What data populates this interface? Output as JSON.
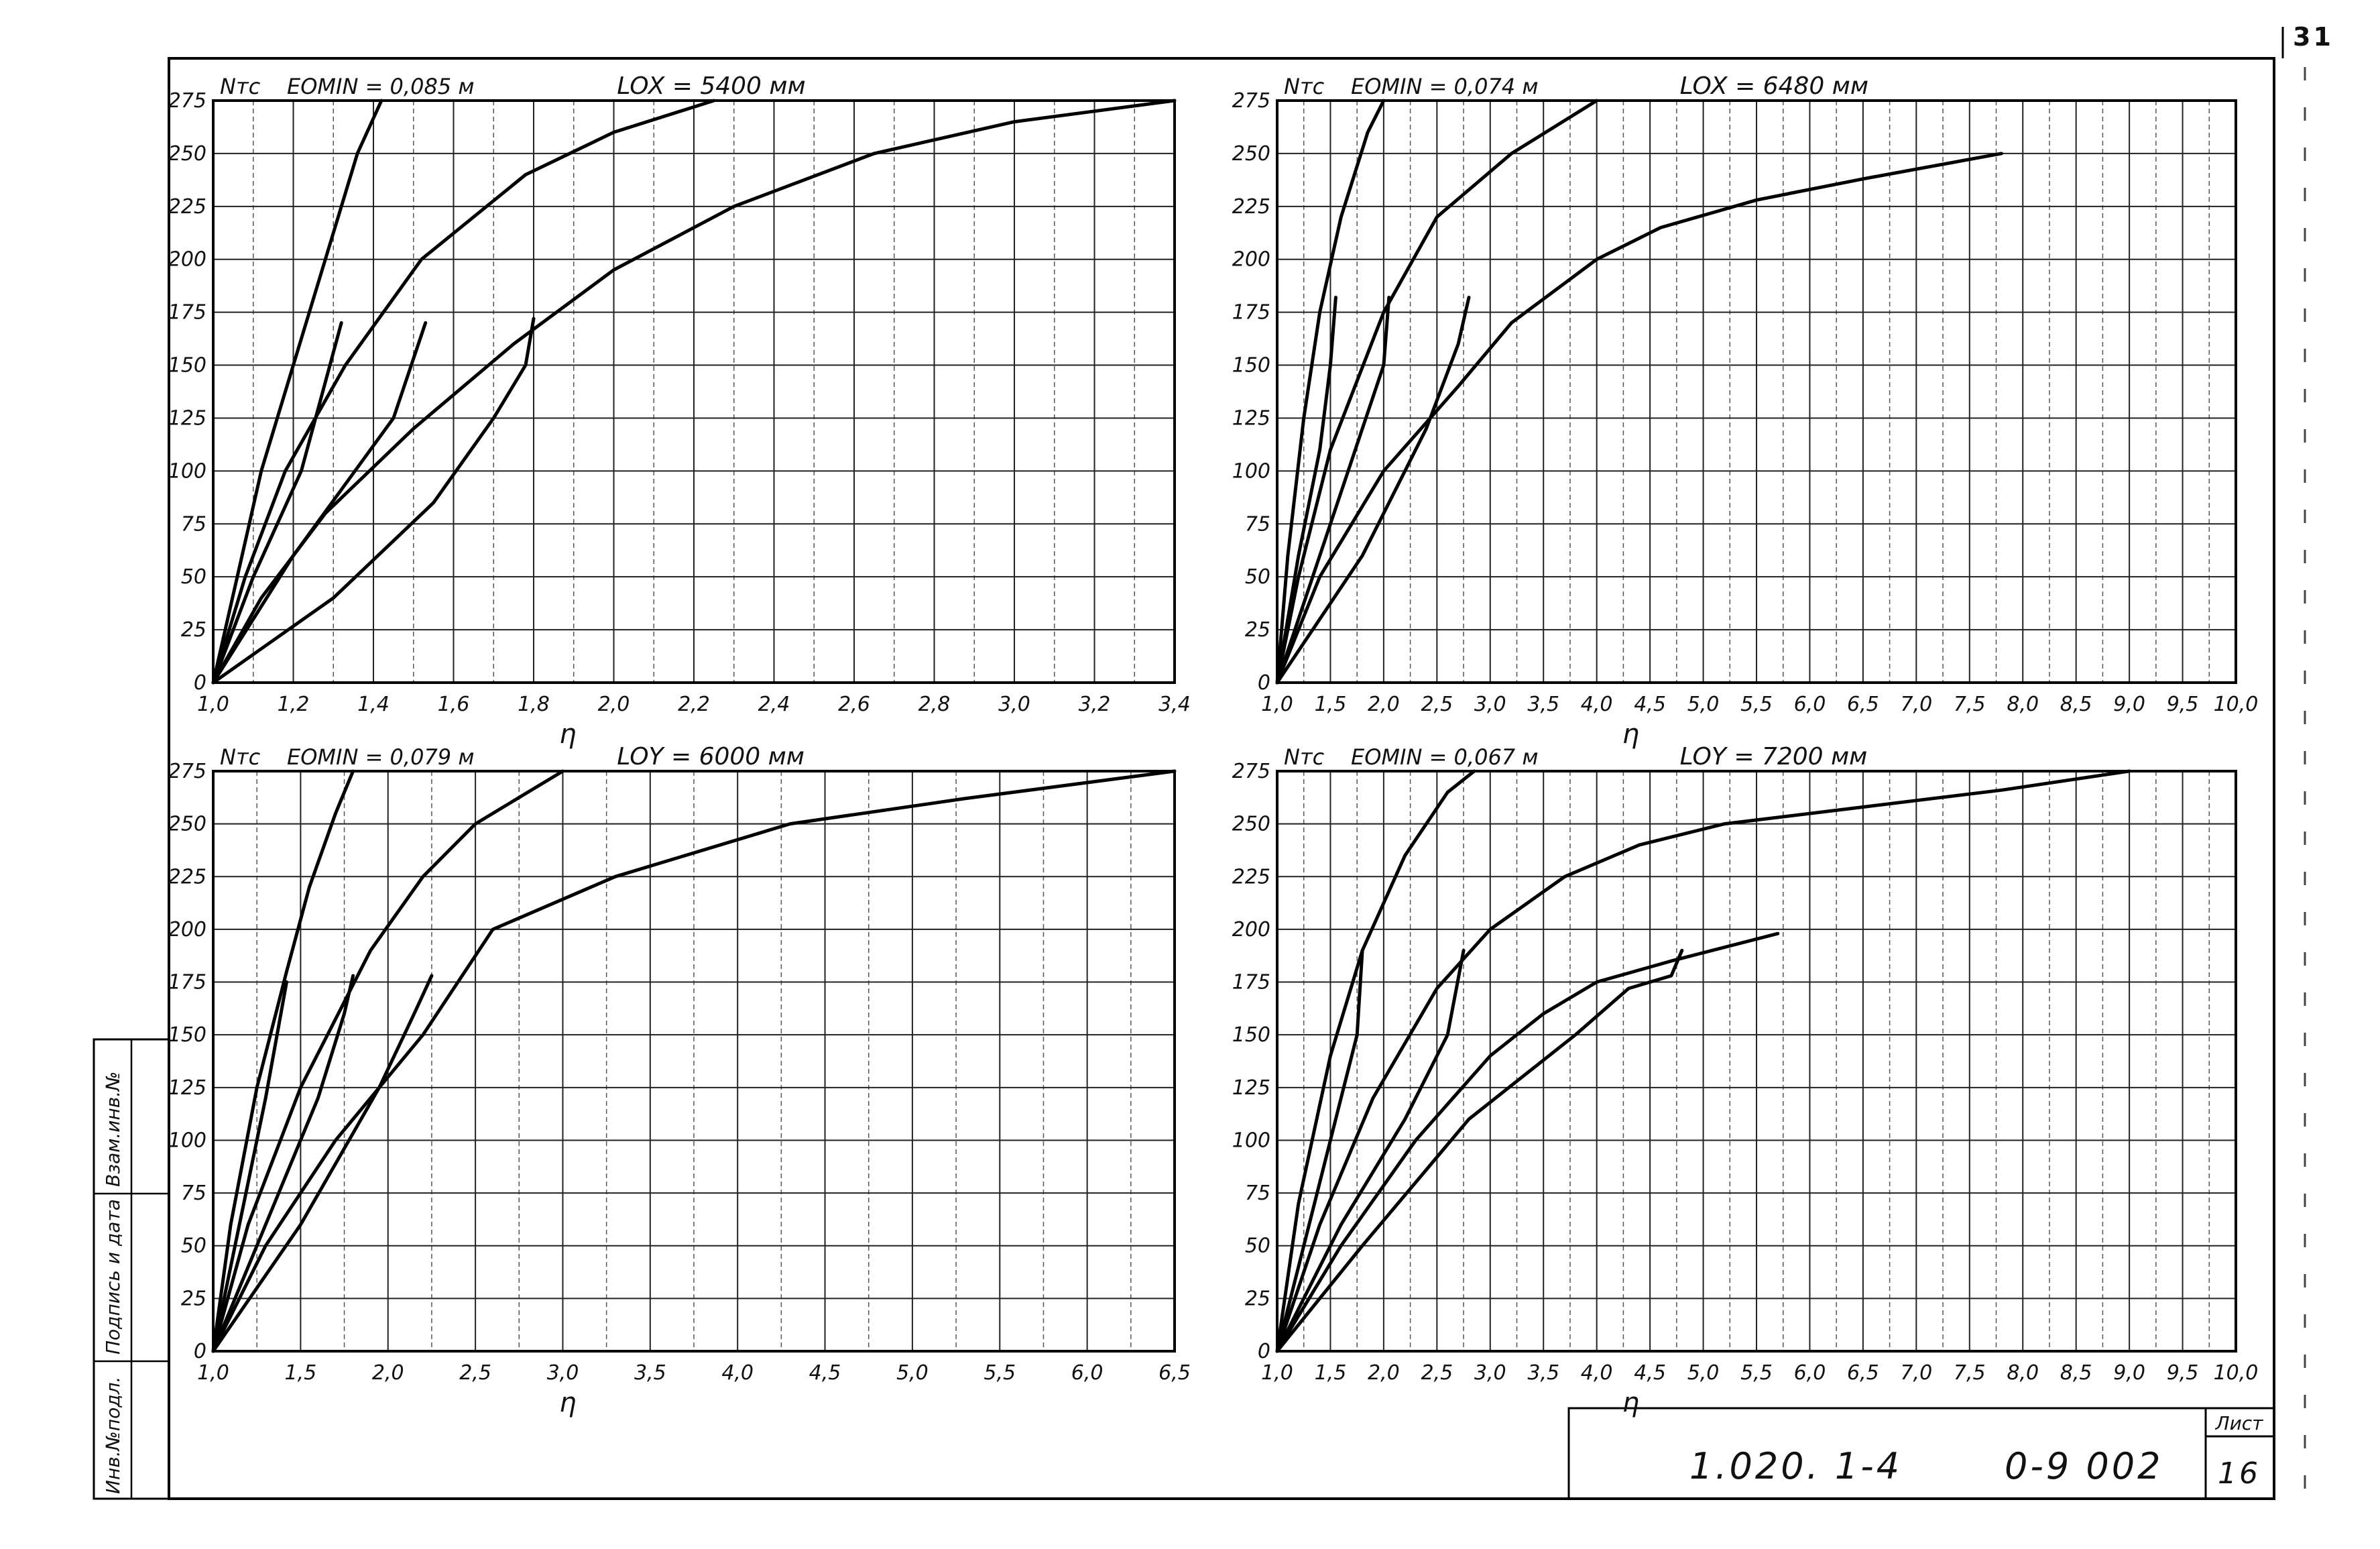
{
  "page_number": "31",
  "title_block": {
    "code": "1.020. 1-4",
    "series": "0-9 002",
    "sheet_label": "Лист",
    "sheet_number": "16"
  },
  "side_stamp": [
    "Взам.инв.№",
    "Подпись и дата",
    "Инв.№подл."
  ],
  "chart_data": [
    {
      "type": "line",
      "eomin": "EOMIN = 0,085 м",
      "length_label": "LOX = 5400 мм",
      "ylabel": "Nтс",
      "xlabel": "η",
      "xlim": [
        1.0,
        3.4
      ],
      "ylim": [
        0,
        275
      ],
      "x_ticks": [
        "1,0",
        "1,2",
        "1,4",
        "1,6",
        "1,8",
        "2,0",
        "2,2",
        "2,4",
        "2,6",
        "2,8",
        "3,0",
        "3,2",
        "3,4"
      ],
      "y_ticks": [
        "0",
        "25",
        "50",
        "75",
        "100",
        "125",
        "150",
        "175",
        "200",
        "225",
        "250",
        "275"
      ],
      "grid": true,
      "series": [
        {
          "points": [
            [
              1.0,
              0
            ],
            [
              1.06,
              50
            ],
            [
              1.12,
              100
            ],
            [
              1.2,
              150
            ],
            [
              1.28,
              200
            ],
            [
              1.36,
              250
            ],
            [
              1.42,
              275
            ]
          ]
        },
        {
          "points": [
            [
              1.0,
              0
            ],
            [
              1.08,
              50
            ],
            [
              1.18,
              100
            ],
            [
              1.33,
              150
            ],
            [
              1.52,
              200
            ],
            [
              1.78,
              240
            ],
            [
              2.0,
              260
            ],
            [
              2.25,
              275
            ]
          ]
        },
        {
          "points": [
            [
              1.0,
              0
            ],
            [
              1.12,
              40
            ],
            [
              1.28,
              80
            ],
            [
              1.5,
              120
            ],
            [
              1.75,
              160
            ],
            [
              2.0,
              195
            ],
            [
              2.3,
              225
            ],
            [
              2.65,
              250
            ],
            [
              3.0,
              265
            ],
            [
              3.4,
              275
            ]
          ]
        },
        {
          "points": [
            [
              1.0,
              0
            ],
            [
              1.1,
              50
            ],
            [
              1.22,
              100
            ],
            [
              1.32,
              170
            ]
          ]
        },
        {
          "points": [
            [
              1.0,
              0
            ],
            [
              1.2,
              60
            ],
            [
              1.45,
              125
            ],
            [
              1.53,
              170
            ]
          ]
        },
        {
          "points": [
            [
              1.0,
              0
            ],
            [
              1.3,
              40
            ],
            [
              1.55,
              85
            ],
            [
              1.7,
              125
            ],
            [
              1.78,
              150
            ],
            [
              1.8,
              172
            ]
          ]
        }
      ]
    },
    {
      "type": "line",
      "eomin": "EOMIN = 0,074 м",
      "length_label": "LOX = 6480 мм",
      "ylabel": "Nтс",
      "xlabel": "η",
      "xlim": [
        1.0,
        10.0
      ],
      "ylim": [
        0,
        275
      ],
      "x_ticks": [
        "1,0",
        "1,5",
        "2,0",
        "2,5",
        "3,0",
        "3,5",
        "4,0",
        "4,5",
        "5,0",
        "5,5",
        "6,0",
        "6,5",
        "7,0",
        "7,5",
        "8,0",
        "8,5",
        "9,0",
        "9,5",
        "10,0"
      ],
      "y_ticks": [
        "0",
        "25",
        "50",
        "75",
        "100",
        "125",
        "150",
        "175",
        "200",
        "225",
        "250",
        "275"
      ],
      "grid": true,
      "series": [
        {
          "points": [
            [
              1.0,
              0
            ],
            [
              1.1,
              60
            ],
            [
              1.25,
              125
            ],
            [
              1.4,
              175
            ],
            [
              1.6,
              220
            ],
            [
              1.85,
              260
            ],
            [
              2.0,
              275
            ]
          ]
        },
        {
          "points": [
            [
              1.0,
              0
            ],
            [
              1.2,
              50
            ],
            [
              1.5,
              110
            ],
            [
              2.0,
              175
            ],
            [
              2.5,
              220
            ],
            [
              3.2,
              250
            ],
            [
              4.0,
              275
            ]
          ]
        },
        {
          "points": [
            [
              1.0,
              0
            ],
            [
              1.4,
              50
            ],
            [
              2.0,
              100
            ],
            [
              2.7,
              140
            ],
            [
              3.2,
              170
            ],
            [
              4.0,
              200
            ],
            [
              4.6,
              215
            ],
            [
              5.5,
              228
            ],
            [
              6.5,
              238
            ],
            [
              7.8,
              250
            ]
          ]
        },
        {
          "points": [
            [
              1.0,
              0
            ],
            [
              1.2,
              60
            ],
            [
              1.4,
              110
            ],
            [
              1.5,
              150
            ],
            [
              1.55,
              182
            ]
          ]
        },
        {
          "points": [
            [
              1.0,
              0
            ],
            [
              1.4,
              60
            ],
            [
              1.8,
              120
            ],
            [
              2.0,
              150
            ],
            [
              2.05,
              182
            ]
          ]
        },
        {
          "points": [
            [
              1.0,
              0
            ],
            [
              1.8,
              60
            ],
            [
              2.4,
              120
            ],
            [
              2.7,
              160
            ],
            [
              2.8,
              182
            ]
          ]
        }
      ]
    },
    {
      "type": "line",
      "eomin": "EOMIN = 0,079 м",
      "length_label": "LOY = 6000 мм",
      "ylabel": "Nтс",
      "xlabel": "η",
      "xlim": [
        1.0,
        6.5
      ],
      "ylim": [
        0,
        275
      ],
      "x_ticks": [
        "1,0",
        "1,5",
        "2,0",
        "2,5",
        "3,0",
        "3,5",
        "4,0",
        "4,5",
        "5,0",
        "5,5",
        "6,0",
        "6,5"
      ],
      "y_ticks": [
        "0",
        "25",
        "50",
        "75",
        "100",
        "125",
        "150",
        "175",
        "200",
        "225",
        "250",
        "275"
      ],
      "grid": true,
      "series": [
        {
          "points": [
            [
              1.0,
              0
            ],
            [
              1.1,
              60
            ],
            [
              1.25,
              125
            ],
            [
              1.42,
              180
            ],
            [
              1.55,
              220
            ],
            [
              1.7,
              255
            ],
            [
              1.8,
              275
            ]
          ]
        },
        {
          "points": [
            [
              1.0,
              0
            ],
            [
              1.2,
              60
            ],
            [
              1.5,
              125
            ],
            [
              1.9,
              190
            ],
            [
              2.2,
              225
            ],
            [
              2.5,
              250
            ],
            [
              3.0,
              275
            ]
          ]
        },
        {
          "points": [
            [
              1.0,
              0
            ],
            [
              1.3,
              50
            ],
            [
              1.7,
              100
            ],
            [
              2.2,
              150
            ],
            [
              2.6,
              200
            ],
            [
              3.3,
              225
            ],
            [
              4.3,
              250
            ],
            [
              5.3,
              262
            ],
            [
              6.5,
              275
            ]
          ]
        },
        {
          "points": [
            [
              1.0,
              0
            ],
            [
              1.15,
              60
            ],
            [
              1.3,
              120
            ],
            [
              1.42,
              175
            ]
          ]
        },
        {
          "points": [
            [
              1.0,
              0
            ],
            [
              1.3,
              60
            ],
            [
              1.6,
              120
            ],
            [
              1.75,
              160
            ],
            [
              1.8,
              178
            ]
          ]
        },
        {
          "points": [
            [
              1.0,
              0
            ],
            [
              1.5,
              60
            ],
            [
              1.95,
              125
            ],
            [
              2.15,
              160
            ],
            [
              2.25,
              178
            ]
          ]
        }
      ]
    },
    {
      "type": "line",
      "eomin": "EOMIN = 0,067 м",
      "length_label": "LOY = 7200 мм",
      "ylabel": "Nтс",
      "xlabel": "η",
      "xlim": [
        1.0,
        10.0
      ],
      "ylim": [
        0,
        275
      ],
      "x_ticks": [
        "1,0",
        "1,5",
        "2,0",
        "2,5",
        "3,0",
        "3,5",
        "4,0",
        "4,5",
        "5,0",
        "5,5",
        "6,0",
        "6,5",
        "7,0",
        "7,5",
        "8,0",
        "8,5",
        "9,0",
        "9,5",
        "10,0"
      ],
      "y_ticks": [
        "0",
        "25",
        "50",
        "75",
        "100",
        "125",
        "150",
        "175",
        "200",
        "225",
        "250",
        "275"
      ],
      "grid": true,
      "series": [
        {
          "points": [
            [
              1.0,
              0
            ],
            [
              1.2,
              70
            ],
            [
              1.5,
              140
            ],
            [
              1.8,
              190
            ],
            [
              2.2,
              235
            ],
            [
              2.6,
              265
            ],
            [
              2.85,
              275
            ]
          ]
        },
        {
          "points": [
            [
              1.0,
              0
            ],
            [
              1.4,
              60
            ],
            [
              1.9,
              120
            ],
            [
              2.5,
              172
            ],
            [
              3.0,
              200
            ],
            [
              3.7,
              225
            ],
            [
              4.4,
              240
            ],
            [
              5.2,
              250
            ],
            [
              6.5,
              258
            ],
            [
              7.8,
              266
            ],
            [
              9.0,
              275
            ]
          ]
        },
        {
          "points": [
            [
              1.0,
              0
            ],
            [
              1.6,
              50
            ],
            [
              2.3,
              100
            ],
            [
              3.0,
              140
            ],
            [
              3.5,
              160
            ],
            [
              4.0,
              175
            ],
            [
              4.7,
              185
            ],
            [
              5.7,
              198
            ]
          ]
        },
        {
          "points": [
            [
              1.0,
              0
            ],
            [
              1.3,
              60
            ],
            [
              1.6,
              120
            ],
            [
              1.75,
              150
            ],
            [
              1.8,
              190
            ]
          ]
        },
        {
          "points": [
            [
              1.0,
              0
            ],
            [
              1.6,
              60
            ],
            [
              2.2,
              110
            ],
            [
              2.6,
              150
            ],
            [
              2.75,
              190
            ]
          ]
        },
        {
          "points": [
            [
              1.0,
              0
            ],
            [
              1.8,
              50
            ],
            [
              2.8,
              110
            ],
            [
              3.8,
              150
            ],
            [
              4.3,
              172
            ],
            [
              4.7,
              178
            ],
            [
              4.8,
              190
            ]
          ]
        }
      ]
    }
  ]
}
